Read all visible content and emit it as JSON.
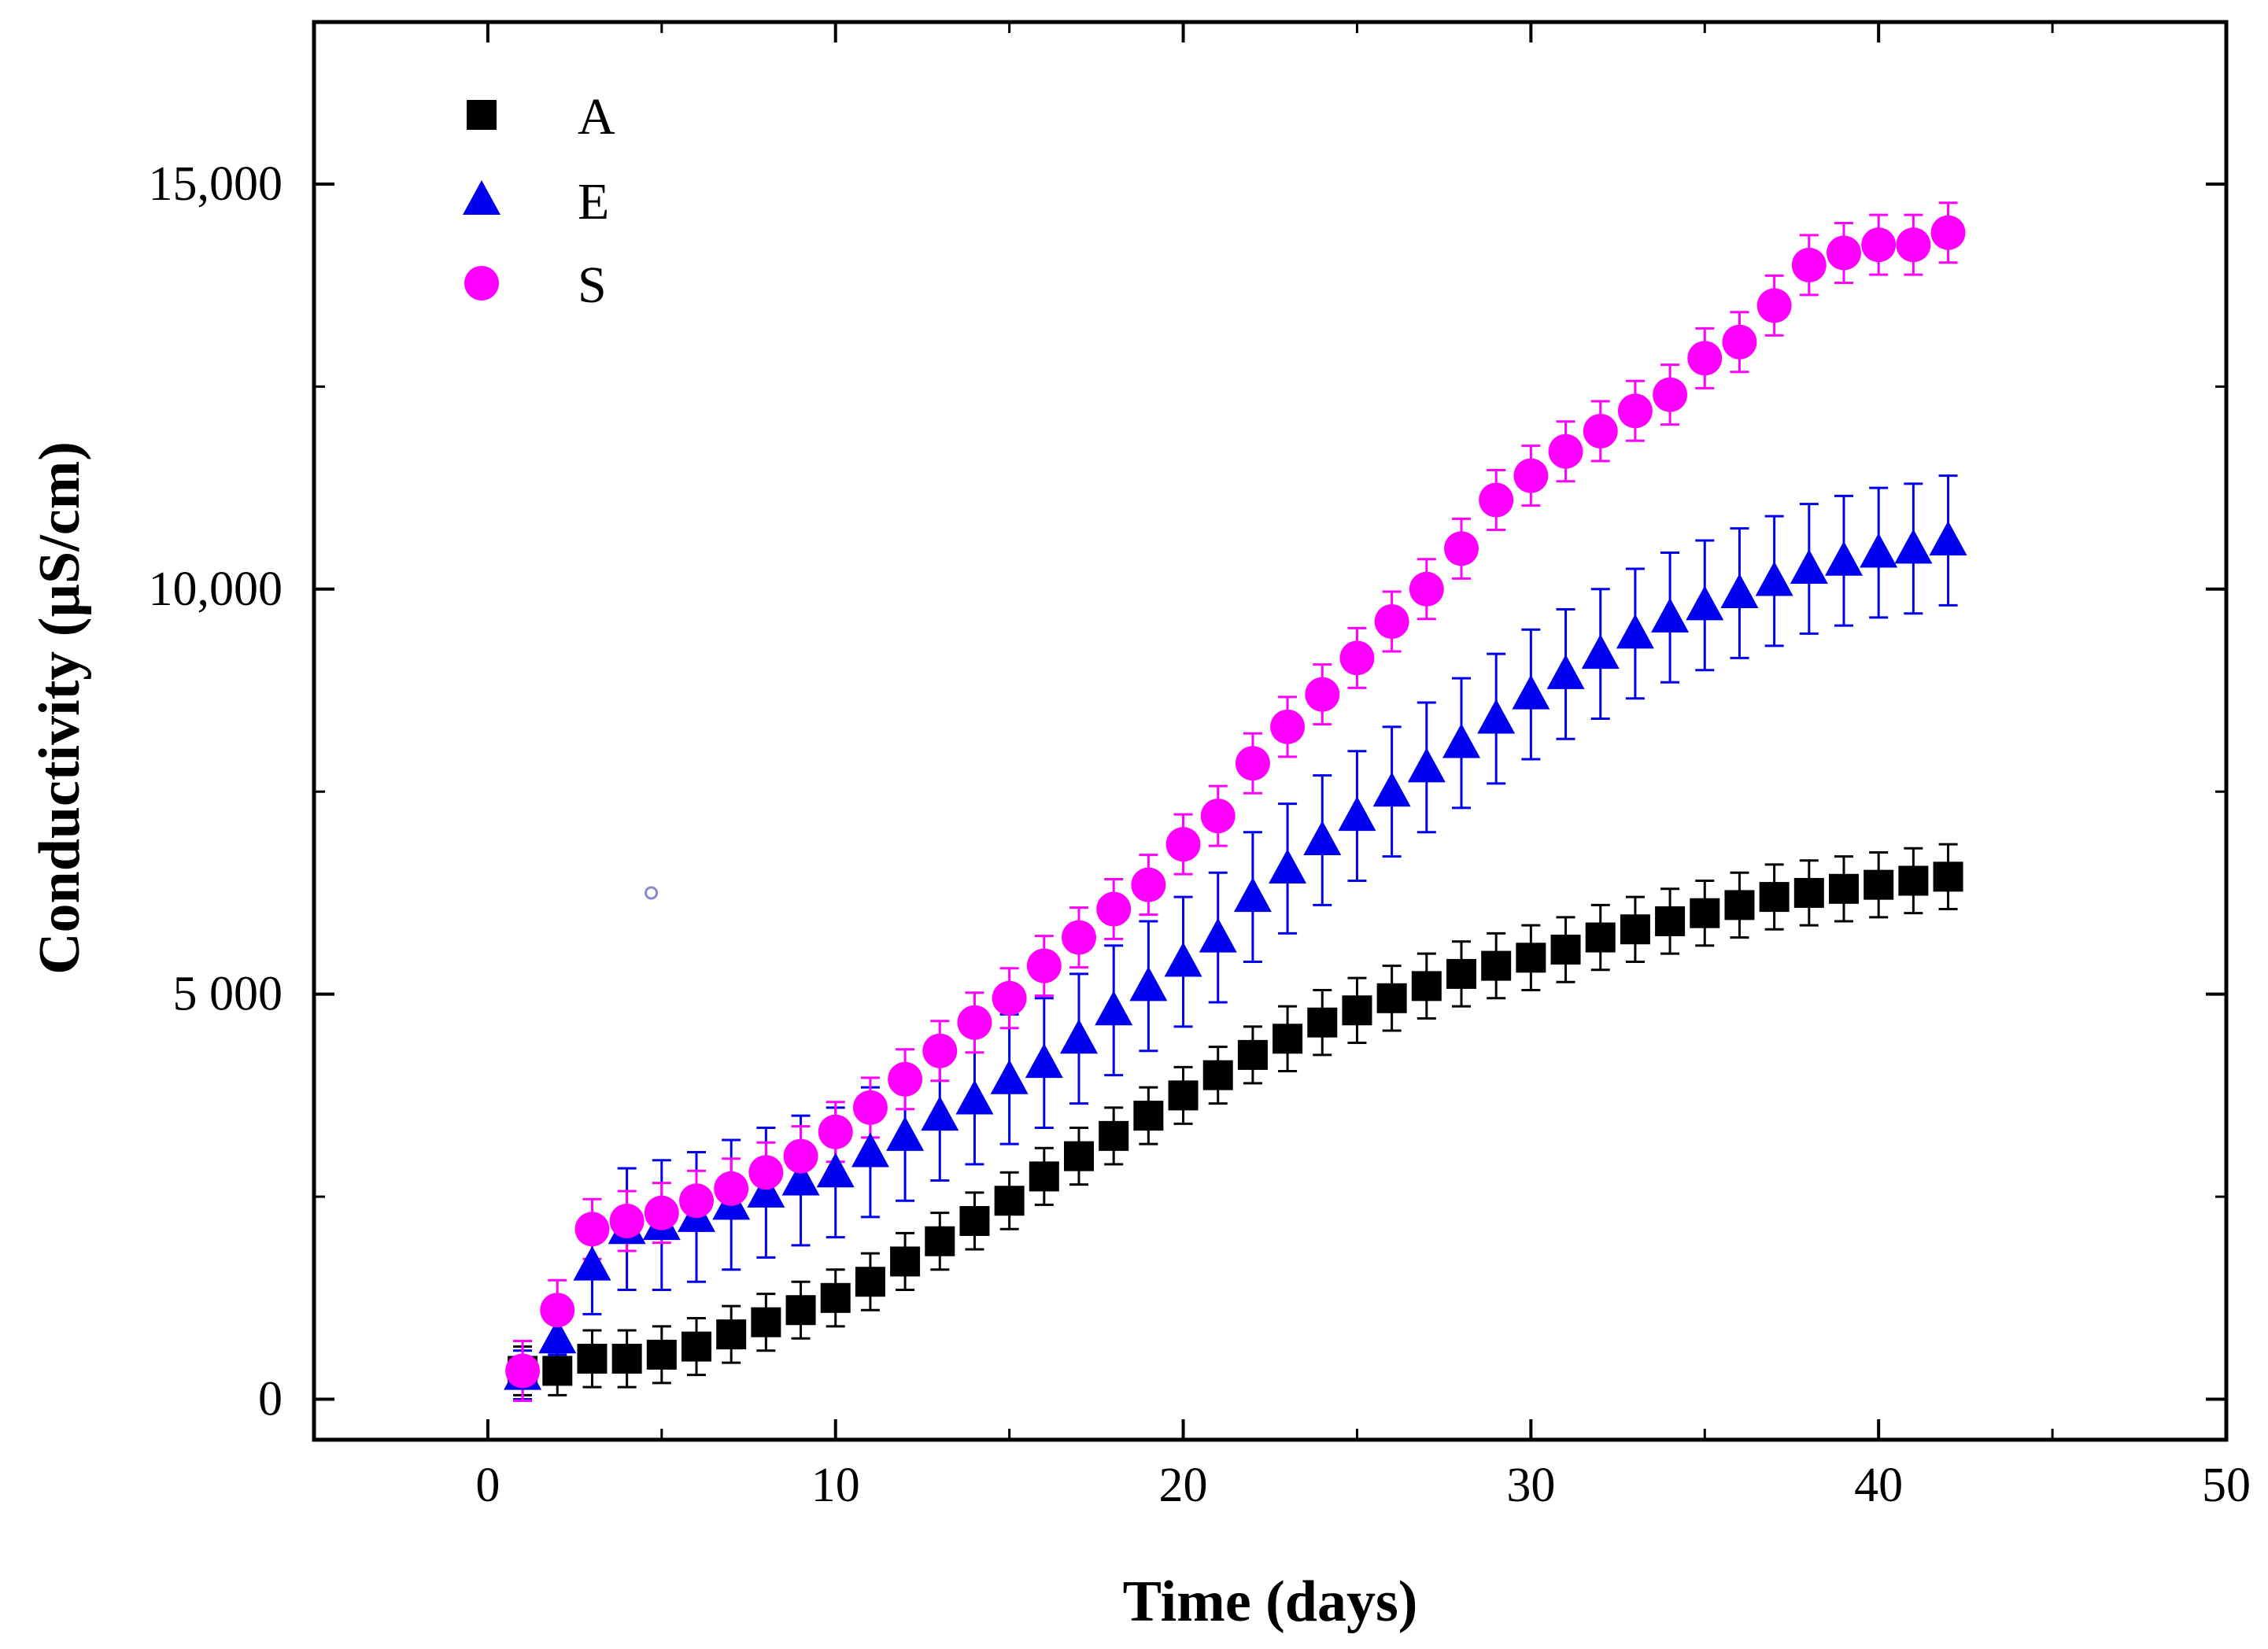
{
  "chart_data": {
    "type": "scatter",
    "title": "",
    "xlabel": "Time (days)",
    "ylabel": "Conductivity (µS/cm)",
    "xlim": [
      -5,
      50
    ],
    "ylim": [
      -500,
      17000
    ],
    "x_ticks": [
      0,
      10,
      20,
      30,
      40,
      50
    ],
    "x_tick_labels": [
      "0",
      "10",
      "20",
      "30",
      "40",
      "50"
    ],
    "y_ticks": [
      0,
      5000,
      10000,
      15000
    ],
    "y_tick_labels": [
      "0",
      "5 000",
      "10,000",
      "15,000"
    ],
    "grid": false,
    "legend_position": "top-left",
    "x": [
      1,
      2,
      3,
      4,
      5,
      6,
      7,
      8,
      9,
      10,
      11,
      12,
      13,
      14,
      15,
      16,
      17,
      18,
      19,
      20,
      21,
      22,
      23,
      24,
      25,
      26,
      27,
      28,
      29,
      30,
      31,
      32,
      33,
      34,
      35,
      36,
      37,
      38,
      39,
      40,
      41,
      42
    ],
    "series": [
      {
        "name": "A",
        "marker": "square",
        "color": "#000000",
        "values": [
          350,
          350,
          500,
          500,
          550,
          650,
          800,
          950,
          1100,
          1250,
          1450,
          1700,
          1950,
          2200,
          2450,
          2750,
          3000,
          3250,
          3500,
          3750,
          4000,
          4250,
          4450,
          4650,
          4800,
          4950,
          5100,
          5250,
          5350,
          5450,
          5550,
          5700,
          5800,
          5900,
          6000,
          6100,
          6200,
          6250,
          6300,
          6350,
          6400,
          6450
        ],
        "errors": [
          300,
          300,
          350,
          350,
          350,
          350,
          350,
          350,
          350,
          350,
          350,
          350,
          350,
          350,
          350,
          350,
          350,
          350,
          350,
          350,
          350,
          350,
          400,
          400,
          400,
          400,
          400,
          400,
          400,
          400,
          400,
          400,
          400,
          400,
          400,
          400,
          400,
          400,
          400,
          400,
          400,
          400
        ]
      },
      {
        "name": "E",
        "marker": "triangle",
        "color": "#0000ee",
        "values": [
          300,
          750,
          1650,
          2100,
          2150,
          2250,
          2400,
          2550,
          2700,
          2800,
          3050,
          3250,
          3500,
          3700,
          3950,
          4150,
          4450,
          4800,
          5100,
          5400,
          5700,
          6200,
          6550,
          6900,
          7200,
          7500,
          7800,
          8100,
          8400,
          8700,
          8950,
          9200,
          9450,
          9650,
          9800,
          9950,
          10100,
          10250,
          10350,
          10450,
          10500,
          10600
        ],
        "errors": [
          300,
          200,
          600,
          750,
          800,
          800,
          800,
          800,
          800,
          800,
          800,
          800,
          800,
          800,
          800,
          800,
          800,
          800,
          800,
          800,
          800,
          800,
          800,
          800,
          800,
          800,
          800,
          800,
          800,
          800,
          800,
          800,
          800,
          800,
          800,
          800,
          800,
          800,
          800,
          800,
          800,
          800
        ]
      },
      {
        "name": "S",
        "marker": "circle",
        "color": "#ff00ff",
        "values": [
          350,
          1100,
          2100,
          2200,
          2300,
          2450,
          2600,
          2800,
          3000,
          3300,
          3600,
          3950,
          4300,
          4650,
          4950,
          5350,
          5700,
          6050,
          6350,
          6850,
          7200,
          7850,
          8300,
          8700,
          9150,
          9600,
          10000,
          10500,
          11100,
          11400,
          11700,
          11950,
          12200,
          12400,
          12850,
          13050,
          13500,
          14000,
          14150,
          14250,
          14250,
          14400
        ]
      }
    ]
  },
  "annotations": {
    "stray_marker": {
      "x": 4.7,
      "y": 6250,
      "color": "#8888cc"
    }
  }
}
